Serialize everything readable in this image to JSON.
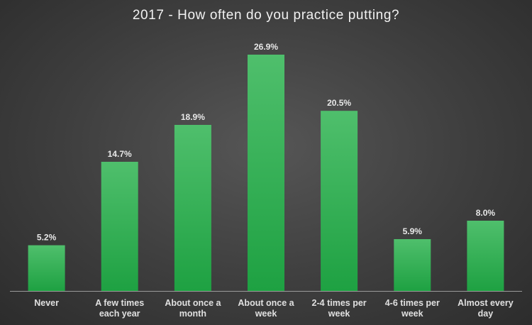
{
  "chart_data": {
    "type": "bar",
    "title": "2017 - How often do you practice putting?",
    "categories": [
      [
        "Never"
      ],
      [
        "A few times",
        "each year"
      ],
      [
        "About once a",
        "month"
      ],
      [
        "About once a",
        "week"
      ],
      [
        "2-4 times per",
        "week"
      ],
      [
        "4-6 times per",
        "week"
      ],
      [
        "Almost every",
        "day"
      ]
    ],
    "values": [
      5.2,
      14.7,
      18.9,
      26.9,
      20.5,
      5.9,
      8.0
    ],
    "value_labels": [
      "5.2%",
      "14.7%",
      "18.9%",
      "26.9%",
      "20.5%",
      "5.9%",
      "8.0%"
    ],
    "xlabel": "",
    "ylabel": "",
    "ylim": [
      0,
      26.9
    ],
    "grid": false,
    "legend": "none",
    "colors": {
      "bar_top": "#4fbf6c",
      "bar_bottom": "#1ea142",
      "text": "#e8e8e8",
      "axis": "#9a9a9a"
    }
  }
}
